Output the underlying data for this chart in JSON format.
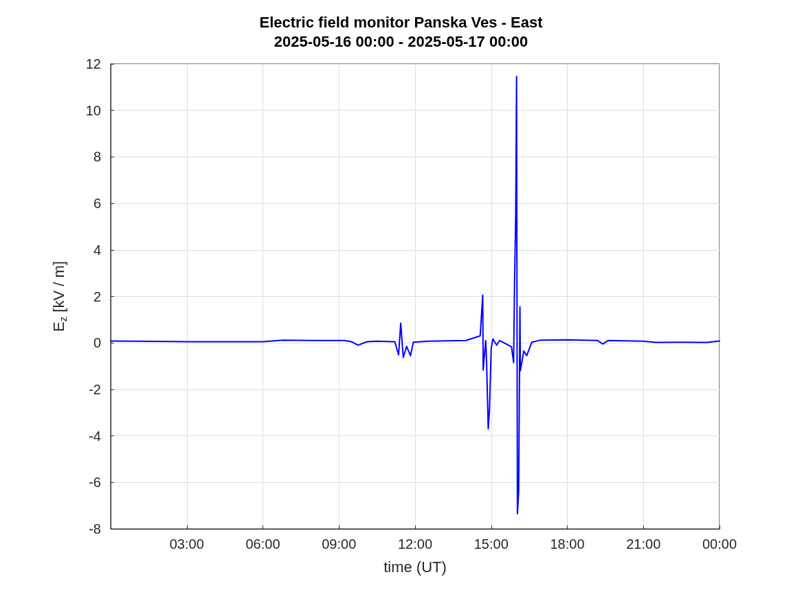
{
  "chart_data": {
    "type": "line",
    "title": "Electric field monitor Panska Ves - East",
    "subtitle": "2025-05-16 00:00 - 2025-05-17 00:00",
    "xlabel": "time (UT)",
    "ylabel": "E$_{z}$ [kV / m]",
    "x": [
      "2025-05-16T00:00",
      "2025-05-16T03:00",
      "2025-05-16T06:00",
      "2025-05-16T06:48",
      "2025-05-16T08:00",
      "2025-05-16T09:12",
      "2025-05-16T09:30",
      "2025-05-16T09:45",
      "2025-05-16T10:06",
      "2025-05-16T10:30",
      "2025-05-16T11:12",
      "2025-05-16T11:21",
      "2025-05-16T11:26",
      "2025-05-16T11:32",
      "2025-05-16T11:40",
      "2025-05-16T11:49",
      "2025-05-16T11:56",
      "2025-05-16T12:30",
      "2025-05-16T14:00",
      "2025-05-16T14:34",
      "2025-05-16T14:40",
      "2025-05-16T14:41",
      "2025-05-16T14:47",
      "2025-05-16T14:49",
      "2025-05-16T14:53",
      "2025-05-16T14:56",
      "2025-05-16T15:00",
      "2025-05-16T15:04",
      "2025-05-16T15:13",
      "2025-05-16T15:20",
      "2025-05-16T15:48",
      "2025-05-16T15:53",
      "2025-05-16T15:55",
      "2025-05-16T15:58",
      "2025-05-16T16:00",
      "2025-05-16T16:02",
      "2025-05-16T16:05",
      "2025-05-16T16:08",
      "2025-05-16T16:09",
      "2025-05-16T16:17",
      "2025-05-16T16:24",
      "2025-05-16T16:36",
      "2025-05-16T16:57",
      "2025-05-16T18:00",
      "2025-05-16T19:12",
      "2025-05-16T19:24",
      "2025-05-16T19:36",
      "2025-05-16T21:00",
      "2025-05-16T21:30",
      "2025-05-16T22:30",
      "2025-05-16T23:30",
      "2025-05-17T00:00"
    ],
    "values": [
      0.08,
      0.05,
      0.05,
      0.12,
      0.1,
      0.1,
      0.05,
      -0.1,
      0.05,
      0.07,
      0.05,
      -0.52,
      0.85,
      -0.63,
      -0.15,
      -0.55,
      0.03,
      0.07,
      0.1,
      0.3,
      2.05,
      -1.17,
      0.1,
      -0.75,
      -3.7,
      -2.85,
      -0.25,
      0.17,
      -0.1,
      0.1,
      -0.17,
      -0.85,
      2.35,
      5.5,
      11.45,
      -7.35,
      -6.4,
      1.55,
      -1.2,
      -0.35,
      -0.55,
      0.03,
      0.12,
      0.13,
      0.1,
      -0.05,
      0.1,
      0.07,
      0.02,
      0.03,
      0.02,
      0.08
    ],
    "color": "#0000ff",
    "xlim": [
      "2025-05-16T00:00",
      "2025-05-17T00:00"
    ],
    "xticks": [
      {
        "value": "2025-05-16T03:00",
        "label": "03:00"
      },
      {
        "value": "2025-05-16T06:00",
        "label": "06:00"
      },
      {
        "value": "2025-05-16T09:00",
        "label": "09:00"
      },
      {
        "value": "2025-05-16T12:00",
        "label": "12:00"
      },
      {
        "value": "2025-05-16T15:00",
        "label": "15:00"
      },
      {
        "value": "2025-05-16T18:00",
        "label": "18:00"
      },
      {
        "value": "2025-05-16T21:00",
        "label": "21:00"
      },
      {
        "value": "2025-05-17T00:00",
        "label": "00:00"
      }
    ],
    "ylim": [
      -8,
      12
    ],
    "yticks": [
      -8,
      -6,
      -4,
      -2,
      0,
      2,
      4,
      6,
      8,
      10,
      12
    ],
    "grid": true,
    "marker": "none",
    "line_style": "solid"
  }
}
